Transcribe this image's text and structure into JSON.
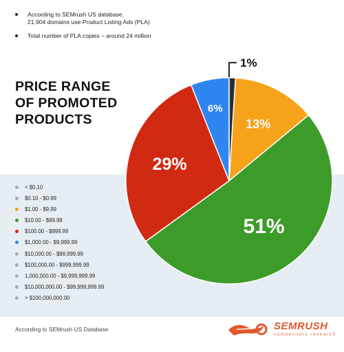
{
  "notes": [
    {
      "line1": "According to SEMrush US database,",
      "line2": "21,904 domains use Product Listing Ads (PLA)"
    },
    {
      "line1": "Total number of PLA copies – around 24 million",
      "line2": ""
    }
  ],
  "title": {
    "line1": "PRICE RANGE",
    "line2": "OF PROMOTED",
    "line3": "PRODUCTS"
  },
  "chart_data": {
    "type": "pie",
    "title": "PRICE RANGE OF PROMOTED PRODUCTS",
    "start_angle_deg": 0,
    "direction": "clockwise",
    "legend_position": "left",
    "slices": [
      {
        "label": "$0.10 - $0.99",
        "value": 1,
        "display": "1%",
        "color": "#2e2e2e",
        "label_style": "callout"
      },
      {
        "label": "$1.00 - $9.99",
        "value": 13,
        "display": "13%",
        "color": "#f7a21b",
        "label_style": "inside"
      },
      {
        "label": "$10.00 - $99.99",
        "value": 51,
        "display": "51%",
        "color": "#3d9b2a",
        "label_style": "inside"
      },
      {
        "label": "$100.00 - $999.99",
        "value": 29,
        "display": "29%",
        "color": "#d12a12",
        "label_style": "inside"
      },
      {
        "label": "$1,000.00 - $9,999.99",
        "value": 6,
        "display": "6%",
        "color": "#2f86f0",
        "label_style": "inside"
      }
    ]
  },
  "legend": [
    {
      "label": "< $0.10",
      "color": "#a6aaae"
    },
    {
      "label": "$0.10 - $0.99",
      "color": "#a6aaae"
    },
    {
      "label": "$1.00 - $9.99",
      "color": "#f7a21b"
    },
    {
      "label": "$10.00 - $99.99",
      "color": "#3d9b2a"
    },
    {
      "label": "$100.00 - $999.99",
      "color": "#d12a12"
    },
    {
      "label": "$1,000.00 - $9,999.99",
      "color": "#2f86f0"
    },
    {
      "label": "$10,000.00 - $99,999.99",
      "color": "#a6aaae"
    },
    {
      "label": "$100,000.00 - $999,999.99",
      "color": "#a6aaae"
    },
    {
      "label": "1,000,000.00 - $9,999,999.99",
      "color": "#a6aaae"
    },
    {
      "label": "$10,000,000.00 - $99,999,999.99",
      "color": "#a6aaae"
    },
    {
      "label": "> $100,000,000.00",
      "color": "#a6aaae"
    }
  ],
  "footer": {
    "source": "According to SEMrush US Database",
    "brand": "SEMRUSH",
    "tagline": "competitors research",
    "brand_color": "#e2572c"
  }
}
